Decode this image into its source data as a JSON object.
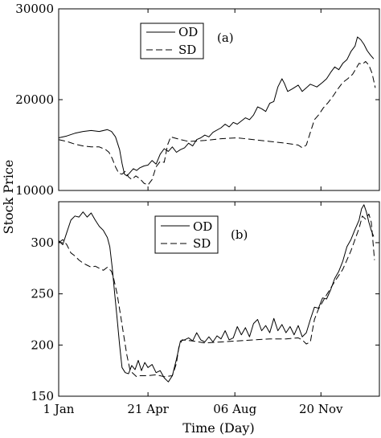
{
  "figure": {
    "ylabel": "Stock Price",
    "xlabel": "Time (Day)",
    "x_ticks": [
      {
        "day": 0,
        "label": "1 Jan"
      },
      {
        "day": 110,
        "label": "21 Apr"
      },
      {
        "day": 217,
        "label": "06 Aug"
      },
      {
        "day": 323,
        "label": "20 Nov"
      }
    ],
    "x_range": [
      0,
      395
    ]
  },
  "chart_data": [
    {
      "type": "line",
      "panel_label": "(a)",
      "ylim": [
        10000,
        30000
      ],
      "yticks": [
        10000,
        20000,
        30000
      ],
      "legend_position": "top-center",
      "series": [
        {
          "name": "OD",
          "style": "solid",
          "points": [
            [
              0,
              15800
            ],
            [
              10,
              16000
            ],
            [
              20,
              16300
            ],
            [
              30,
              16500
            ],
            [
              40,
              16600
            ],
            [
              50,
              16500
            ],
            [
              60,
              16700
            ],
            [
              65,
              16500
            ],
            [
              70,
              15900
            ],
            [
              75,
              14500
            ],
            [
              78,
              13000
            ],
            [
              81,
              11800
            ],
            [
              84,
              11600
            ],
            [
              88,
              12000
            ],
            [
              92,
              12400
            ],
            [
              96,
              12200
            ],
            [
              100,
              12500
            ],
            [
              105,
              12700
            ],
            [
              110,
              12800
            ],
            [
              115,
              13300
            ],
            [
              120,
              12900
            ],
            [
              125,
              14000
            ],
            [
              130,
              14600
            ],
            [
              135,
              14300
            ],
            [
              140,
              14800
            ],
            [
              145,
              14200
            ],
            [
              150,
              14500
            ],
            [
              155,
              14700
            ],
            [
              160,
              15200
            ],
            [
              165,
              14900
            ],
            [
              170,
              15600
            ],
            [
              175,
              15800
            ],
            [
              180,
              16100
            ],
            [
              185,
              15900
            ],
            [
              190,
              16400
            ],
            [
              200,
              16900
            ],
            [
              205,
              17300
            ],
            [
              210,
              17000
            ],
            [
              215,
              17500
            ],
            [
              220,
              17300
            ],
            [
              230,
              18000
            ],
            [
              235,
              17800
            ],
            [
              240,
              18300
            ],
            [
              245,
              19200
            ],
            [
              250,
              19000
            ],
            [
              255,
              18700
            ],
            [
              260,
              19600
            ],
            [
              265,
              19800
            ],
            [
              270,
              21400
            ],
            [
              275,
              22300
            ],
            [
              278,
              21800
            ],
            [
              282,
              20900
            ],
            [
              288,
              21200
            ],
            [
              295,
              21600
            ],
            [
              300,
              20900
            ],
            [
              305,
              21300
            ],
            [
              310,
              21700
            ],
            [
              318,
              21400
            ],
            [
              325,
              21900
            ],
            [
              330,
              22300
            ],
            [
              335,
              23000
            ],
            [
              340,
              23600
            ],
            [
              345,
              23300
            ],
            [
              350,
              24000
            ],
            [
              355,
              24400
            ],
            [
              360,
              25300
            ],
            [
              365,
              25900
            ],
            [
              368,
              26900
            ],
            [
              372,
              26600
            ],
            [
              376,
              26100
            ],
            [
              380,
              25400
            ],
            [
              384,
              24900
            ],
            [
              388,
              24500
            ]
          ]
        },
        {
          "name": "SD",
          "style": "dashed",
          "points": [
            [
              0,
              15600
            ],
            [
              10,
              15400
            ],
            [
              20,
              15100
            ],
            [
              30,
              14900
            ],
            [
              40,
              14800
            ],
            [
              50,
              14800
            ],
            [
              58,
              14500
            ],
            [
              62,
              14200
            ],
            [
              66,
              13500
            ],
            [
              70,
              12600
            ],
            [
              74,
              11900
            ],
            [
              78,
              11800
            ],
            [
              82,
              12100
            ],
            [
              86,
              11500
            ],
            [
              90,
              11200
            ],
            [
              95,
              11600
            ],
            [
              100,
              11300
            ],
            [
              105,
              10800
            ],
            [
              110,
              10600
            ],
            [
              115,
              11200
            ],
            [
              120,
              12600
            ],
            [
              125,
              13200
            ],
            [
              130,
              13100
            ],
            [
              134,
              15000
            ],
            [
              138,
              15900
            ],
            [
              150,
              15600
            ],
            [
              160,
              15400
            ],
            [
              180,
              15500
            ],
            [
              200,
              15700
            ],
            [
              220,
              15800
            ],
            [
              240,
              15600
            ],
            [
              260,
              15400
            ],
            [
              280,
              15200
            ],
            [
              295,
              15000
            ],
            [
              300,
              14700
            ],
            [
              305,
              15000
            ],
            [
              310,
              16400
            ],
            [
              315,
              17800
            ],
            [
              320,
              18300
            ],
            [
              326,
              19100
            ],
            [
              332,
              19700
            ],
            [
              338,
              20400
            ],
            [
              344,
              21200
            ],
            [
              350,
              21900
            ],
            [
              356,
              22300
            ],
            [
              362,
              22800
            ],
            [
              366,
              23400
            ],
            [
              370,
              24000
            ],
            [
              374,
              23900
            ],
            [
              378,
              24200
            ],
            [
              382,
              23800
            ],
            [
              386,
              22900
            ],
            [
              390,
              21300
            ]
          ]
        }
      ]
    },
    {
      "type": "line",
      "panel_label": "(b)",
      "ylim": [
        150,
        340
      ],
      "yticks": [
        150,
        200,
        250,
        300
      ],
      "legend_position": "top-center",
      "series": [
        {
          "name": "OD",
          "style": "solid",
          "points": [
            [
              0,
              302
            ],
            [
              5,
              298
            ],
            [
              10,
              310
            ],
            [
              15,
              322
            ],
            [
              20,
              326
            ],
            [
              25,
              325
            ],
            [
              30,
              330
            ],
            [
              35,
              325
            ],
            [
              40,
              329
            ],
            [
              45,
              322
            ],
            [
              50,
              316
            ],
            [
              55,
              312
            ],
            [
              60,
              305
            ],
            [
              63,
              296
            ],
            [
              66,
              275
            ],
            [
              69,
              250
            ],
            [
              72,
              226
            ],
            [
              75,
              200
            ],
            [
              78,
              178
            ],
            [
              82,
              173
            ],
            [
              86,
              172
            ],
            [
              90,
              180
            ],
            [
              94,
              176
            ],
            [
              98,
              185
            ],
            [
              102,
              175
            ],
            [
              106,
              183
            ],
            [
              110,
              178
            ],
            [
              115,
              181
            ],
            [
              120,
              173
            ],
            [
              125,
              175
            ],
            [
              130,
              168
            ],
            [
              135,
              164
            ],
            [
              140,
              170
            ],
            [
              145,
              186
            ],
            [
              150,
              204
            ],
            [
              155,
              205
            ],
            [
              160,
              207
            ],
            [
              165,
              204
            ],
            [
              170,
              212
            ],
            [
              175,
              205
            ],
            [
              180,
              203
            ],
            [
              185,
              208
            ],
            [
              190,
              203
            ],
            [
              195,
              209
            ],
            [
              200,
              206
            ],
            [
              205,
              214
            ],
            [
              210,
              205
            ],
            [
              215,
              207
            ],
            [
              220,
              218
            ],
            [
              225,
              210
            ],
            [
              230,
              217
            ],
            [
              235,
              208
            ],
            [
              240,
              221
            ],
            [
              245,
              225
            ],
            [
              250,
              214
            ],
            [
              255,
              219
            ],
            [
              260,
              212
            ],
            [
              265,
              226
            ],
            [
              270,
              214
            ],
            [
              275,
              220
            ],
            [
              280,
              212
            ],
            [
              285,
              218
            ],
            [
              290,
              210
            ],
            [
              295,
              219
            ],
            [
              300,
              208
            ],
            [
              305,
              212
            ],
            [
              310,
              225
            ],
            [
              315,
              237
            ],
            [
              320,
              236
            ],
            [
              325,
              246
            ],
            [
              330,
              245
            ],
            [
              335,
              254
            ],
            [
              340,
              265
            ],
            [
              345,
              272
            ],
            [
              350,
              282
            ],
            [
              355,
              296
            ],
            [
              360,
              303
            ],
            [
              365,
              313
            ],
            [
              370,
              322
            ],
            [
              373,
              333
            ],
            [
              376,
              337
            ],
            [
              379,
              330
            ],
            [
              382,
              320
            ],
            [
              385,
              312
            ],
            [
              388,
              306
            ]
          ]
        },
        {
          "name": "SD",
          "style": "dashed",
          "points": [
            [
              0,
              300
            ],
            [
              5,
              303
            ],
            [
              10,
              298
            ],
            [
              15,
              290
            ],
            [
              20,
              287
            ],
            [
              25,
              283
            ],
            [
              30,
              280
            ],
            [
              35,
              278
            ],
            [
              40,
              276
            ],
            [
              45,
              277
            ],
            [
              50,
              275
            ],
            [
              55,
              273
            ],
            [
              60,
              276
            ],
            [
              65,
              272
            ],
            [
              68,
              264
            ],
            [
              72,
              250
            ],
            [
              76,
              230
            ],
            [
              80,
              210
            ],
            [
              84,
              190
            ],
            [
              88,
              175
            ],
            [
              92,
              172
            ],
            [
              96,
              169
            ],
            [
              100,
              170
            ],
            [
              110,
              170
            ],
            [
              120,
              171
            ],
            [
              130,
              169
            ],
            [
              140,
              170
            ],
            [
              145,
              182
            ],
            [
              148,
              198
            ],
            [
              152,
              205
            ],
            [
              165,
              204
            ],
            [
              180,
              202
            ],
            [
              200,
              203
            ],
            [
              220,
              204
            ],
            [
              240,
              205
            ],
            [
              260,
              206
            ],
            [
              280,
              206
            ],
            [
              295,
              207
            ],
            [
              300,
              205
            ],
            [
              305,
              201
            ],
            [
              310,
              203
            ],
            [
              315,
              225
            ],
            [
              320,
              235
            ],
            [
              330,
              249
            ],
            [
              340,
              262
            ],
            [
              350,
              274
            ],
            [
              360,
              292
            ],
            [
              370,
              314
            ],
            [
              374,
              326
            ],
            [
              378,
              323
            ],
            [
              382,
              328
            ],
            [
              385,
              320
            ],
            [
              387,
              302
            ],
            [
              389,
              283
            ]
          ]
        }
      ]
    }
  ]
}
